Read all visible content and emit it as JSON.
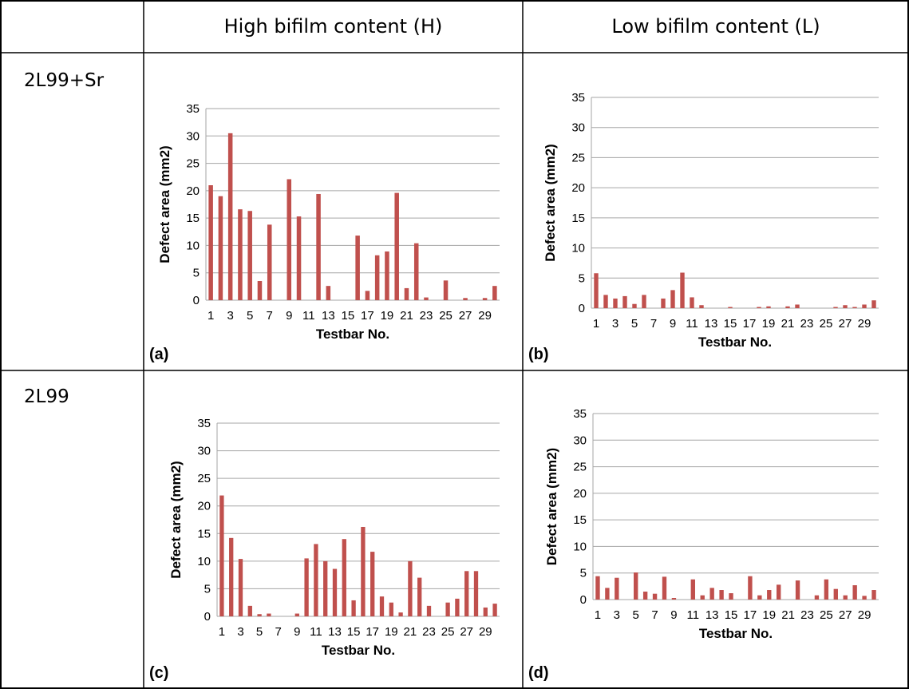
{
  "table": {
    "columns": [
      "",
      "High bifilm content (H)",
      "Low bifilm content (L)"
    ],
    "rows": [
      "2L99+Sr",
      "2L99"
    ]
  },
  "colors": {
    "bar": "#c0504d",
    "grid": "#a6a6a6",
    "border": "#000000"
  },
  "chart_data": [
    {
      "panel": "(a)",
      "type": "bar",
      "xlabel": "Testbar No.",
      "ylabel": "Defect area (mm2)",
      "ylim": [
        0,
        35
      ],
      "yticks": [
        0,
        5,
        10,
        15,
        20,
        25,
        30,
        35
      ],
      "x_tick_labels": [
        "1",
        "3",
        "5",
        "7",
        "9",
        "11",
        "13",
        "15",
        "17",
        "19",
        "21",
        "23",
        "25",
        "27",
        "29"
      ],
      "categories": [
        1,
        2,
        3,
        4,
        5,
        6,
        7,
        8,
        9,
        10,
        11,
        12,
        13,
        14,
        15,
        16,
        17,
        18,
        19,
        20,
        21,
        22,
        23,
        24,
        25,
        26,
        27,
        28,
        29,
        30
      ],
      "values": [
        21.0,
        19.0,
        30.5,
        16.6,
        16.3,
        3.5,
        13.8,
        0,
        22.1,
        15.3,
        0,
        19.4,
        2.6,
        0,
        0,
        11.8,
        1.7,
        8.2,
        8.9,
        19.6,
        2.2,
        10.4,
        0.5,
        0,
        3.6,
        0,
        0.4,
        0,
        0.4,
        2.6
      ],
      "grid": true
    },
    {
      "panel": "(b)",
      "type": "bar",
      "xlabel": "Testbar No.",
      "ylabel": "Defect area (mm2)",
      "ylim": [
        0,
        35
      ],
      "yticks": [
        0,
        5,
        10,
        15,
        20,
        25,
        30,
        35
      ],
      "x_tick_labels": [
        "1",
        "3",
        "5",
        "7",
        "9",
        "11",
        "13",
        "15",
        "17",
        "19",
        "21",
        "23",
        "25",
        "27",
        "29"
      ],
      "categories": [
        1,
        2,
        3,
        4,
        5,
        6,
        7,
        8,
        9,
        10,
        11,
        12,
        13,
        14,
        15,
        16,
        17,
        18,
        19,
        20,
        21,
        22,
        23,
        24,
        25,
        26,
        27,
        28,
        29,
        30
      ],
      "values": [
        5.8,
        2.2,
        1.6,
        2.0,
        0.7,
        2.2,
        0,
        1.6,
        3.0,
        5.9,
        1.8,
        0.5,
        0,
        0,
        0.2,
        0,
        0,
        0.2,
        0.3,
        0,
        0.3,
        0.6,
        0,
        0,
        0,
        0.2,
        0.5,
        0.2,
        0.6,
        1.3
      ],
      "grid": true
    },
    {
      "panel": "(c)",
      "type": "bar",
      "xlabel": "Testbar No.",
      "ylabel": "Defect area (mm2)",
      "ylim": [
        0,
        35
      ],
      "yticks": [
        0,
        5,
        10,
        15,
        20,
        25,
        30,
        35
      ],
      "x_tick_labels": [
        "1",
        "3",
        "5",
        "7",
        "9",
        "11",
        "13",
        "15",
        "17",
        "19",
        "21",
        "23",
        "25",
        "27",
        "29"
      ],
      "categories": [
        1,
        2,
        3,
        4,
        5,
        6,
        7,
        8,
        9,
        10,
        11,
        12,
        13,
        14,
        15,
        16,
        17,
        18,
        19,
        20,
        21,
        22,
        23,
        24,
        25,
        26,
        27,
        28,
        29,
        30
      ],
      "values": [
        21.9,
        14.2,
        10.4,
        1.9,
        0.4,
        0.5,
        0,
        0,
        0.5,
        10.5,
        13.1,
        10.0,
        8.6,
        14.0,
        2.9,
        16.2,
        11.7,
        3.6,
        2.5,
        0.7,
        10.0,
        7.0,
        1.9,
        0,
        2.5,
        3.2,
        8.2,
        8.2,
        1.6,
        2.3
      ],
      "grid": true
    },
    {
      "panel": "(d)",
      "type": "bar",
      "xlabel": "Testbar No.",
      "ylabel": "Defect area (mm2)",
      "ylim": [
        0,
        35
      ],
      "yticks": [
        0,
        5,
        10,
        15,
        20,
        25,
        30,
        35
      ],
      "x_tick_labels": [
        "1",
        "3",
        "5",
        "7",
        "9",
        "11",
        "13",
        "15",
        "17",
        "19",
        "21",
        "23",
        "25",
        "27",
        "29"
      ],
      "categories": [
        1,
        2,
        3,
        4,
        5,
        6,
        7,
        8,
        9,
        10,
        11,
        12,
        13,
        14,
        15,
        16,
        17,
        18,
        19,
        20,
        21,
        22,
        23,
        24,
        25,
        26,
        27,
        28,
        29,
        30
      ],
      "values": [
        4.4,
        2.2,
        4.1,
        0,
        5.1,
        1.5,
        1.1,
        4.3,
        0.3,
        0,
        3.8,
        0.8,
        2.2,
        1.8,
        1.2,
        0,
        4.4,
        0.8,
        1.8,
        2.8,
        0,
        3.6,
        0,
        0.8,
        3.8,
        2.0,
        0.8,
        2.7,
        0.7,
        1.8
      ],
      "grid": true
    }
  ]
}
